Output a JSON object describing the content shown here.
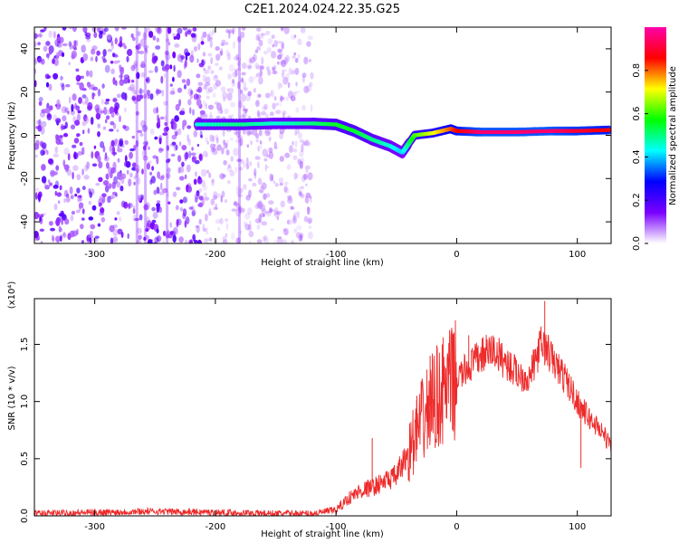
{
  "title": "C2E1.2024.024.22.35.G25",
  "chart_data": [
    {
      "type": "heatmap",
      "xlabel": "Height of straight line (km)",
      "ylabel": "Frequency (Hz)",
      "xlim": [
        -350,
        128
      ],
      "ylim": [
        -50,
        50
      ],
      "xticks": [
        -300,
        -200,
        -100,
        0,
        100
      ],
      "yticks": [
        -40,
        -20,
        0,
        20,
        40
      ],
      "colorbar": {
        "label": "Normalized spectral amplitude",
        "range": [
          0,
          1
        ],
        "ticks": [
          "0.0",
          "0.2",
          "0.4",
          "0.6",
          "0.8"
        ],
        "colors": [
          "#ffffff",
          "#7a00ff",
          "#0000ff",
          "#00ffff",
          "#00ff00",
          "#ffff00",
          "#ff0000",
          "#ff00aa"
        ]
      },
      "noise_region": {
        "x": [
          -350,
          -120
        ],
        "y": [
          -50,
          50
        ]
      },
      "signal_trace": [
        {
          "x": -215,
          "y": 5,
          "amp": 0.45
        },
        {
          "x": -180,
          "y": 5,
          "amp": 0.5
        },
        {
          "x": -150,
          "y": 5.5,
          "amp": 0.45
        },
        {
          "x": -120,
          "y": 5.5,
          "amp": 0.5
        },
        {
          "x": -100,
          "y": 5,
          "amp": 0.55
        },
        {
          "x": -85,
          "y": 2,
          "amp": 0.55
        },
        {
          "x": -70,
          "y": -2,
          "amp": 0.5
        },
        {
          "x": -55,
          "y": -5,
          "amp": 0.45
        },
        {
          "x": -45,
          "y": -8,
          "amp": 0.4
        },
        {
          "x": -35,
          "y": 0,
          "amp": 0.6
        },
        {
          "x": -20,
          "y": 1,
          "amp": 0.7
        },
        {
          "x": -5,
          "y": 3,
          "amp": 0.8
        },
        {
          "x": 0,
          "y": 2,
          "amp": 0.85
        },
        {
          "x": 20,
          "y": 1.5,
          "amp": 0.95
        },
        {
          "x": 50,
          "y": 1.5,
          "amp": 0.95
        },
        {
          "x": 80,
          "y": 2,
          "amp": 0.95
        },
        {
          "x": 100,
          "y": 2,
          "amp": 0.9
        },
        {
          "x": 128,
          "y": 2.5,
          "amp": 0.85
        }
      ]
    },
    {
      "type": "line",
      "xlabel": "Height of straight line (km)",
      "ylabel": "SNR (10 * v/v)",
      "yscale_label": "(x10⁴)",
      "xlim": [
        -350,
        128
      ],
      "ylim": [
        0,
        1.9
      ],
      "xticks": [
        -300,
        -200,
        -100,
        0,
        100
      ],
      "yticks": [
        "0.0",
        "0.5",
        "1.0",
        "1.5"
      ],
      "color": "#ee2a2a",
      "series": [
        {
          "x": [
            -350,
            -300,
            -250,
            -200,
            -150,
            -120,
            -100,
            -90,
            -80,
            -70,
            -60,
            -50,
            -40,
            -30,
            -20,
            -10,
            0,
            10,
            20,
            30,
            40,
            50,
            60,
            65,
            70,
            75,
            80,
            90,
            100,
            110,
            120,
            128
          ],
          "y": [
            0.02,
            0.03,
            0.04,
            0.03,
            0.02,
            0.02,
            0.05,
            0.15,
            0.22,
            0.25,
            0.3,
            0.35,
            0.55,
            0.8,
            1.0,
            1.1,
            1.2,
            1.3,
            1.4,
            1.45,
            1.35,
            1.25,
            1.2,
            1.35,
            1.5,
            1.45,
            1.35,
            1.2,
            1.0,
            0.85,
            0.75,
            0.6
          ]
        }
      ],
      "spikes": [
        {
          "x": -70,
          "y": 0.68
        },
        {
          "x": -33,
          "y": 1.05
        },
        {
          "x": -22,
          "y": 1.4
        },
        {
          "x": -12,
          "y": 1.5
        },
        {
          "x": 10,
          "y": 1.58
        },
        {
          "x": 73,
          "y": 1.88
        },
        {
          "x": 103,
          "y": 0.42
        }
      ]
    }
  ]
}
